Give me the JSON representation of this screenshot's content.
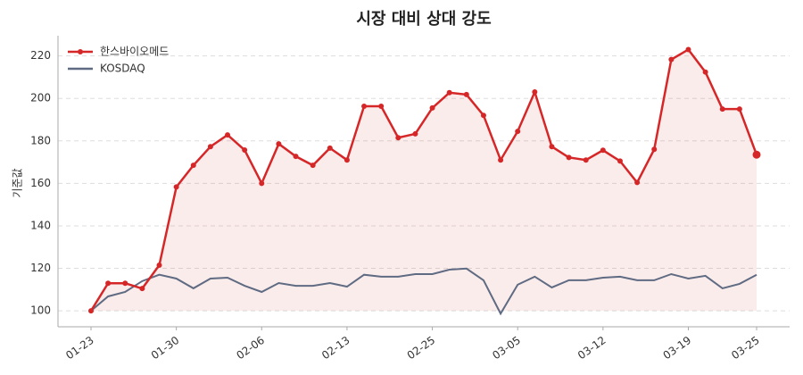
{
  "chart_data": {
    "type": "line",
    "title": "시장 대비 상대 강도",
    "ylabel": "기준값",
    "categories": [
      "01-23",
      null,
      null,
      null,
      null,
      "01-30",
      null,
      null,
      null,
      null,
      "02-06",
      null,
      null,
      null,
      null,
      "02-13",
      null,
      null,
      null,
      null,
      "02-25",
      null,
      null,
      null,
      null,
      "03-05",
      null,
      null,
      null,
      null,
      "03-12",
      null,
      null,
      null,
      null,
      "03-19",
      null,
      null,
      null,
      "03-25"
    ],
    "series": [
      {
        "name": "한스바이오메드",
        "color": "#d62728",
        "values": [
          100,
          113,
          113,
          110.5,
          121.5,
          158.3,
          168.5,
          177.3,
          182.8,
          175.7,
          160,
          178.6,
          172.7,
          168.5,
          176.6,
          171,
          196.3,
          196.3,
          181.5,
          183.3,
          195.5,
          202.7,
          201.8,
          192,
          171,
          184.5,
          203,
          177.3,
          172.2,
          171,
          175.6,
          170.5,
          160.4,
          176,
          218.3,
          223,
          212.4,
          195,
          195,
          173.5
        ]
      },
      {
        "name": "KOSDAQ",
        "color": "#5f6b82",
        "values": [
          100,
          106.8,
          108.9,
          114,
          117,
          115.2,
          110.6,
          115.2,
          115.6,
          111.8,
          108.9,
          113.1,
          111.8,
          111.8,
          113.1,
          111.4,
          117,
          116.1,
          116.1,
          117.3,
          117.3,
          119.4,
          119.9,
          114.4,
          98.7,
          112.3,
          116.1,
          111,
          114.4,
          114.4,
          115.6,
          116.1,
          114.4,
          114.4,
          117.3,
          115.2,
          116.5,
          110.6,
          112.7,
          117
        ]
      }
    ],
    "ylim": [
      92.5,
      229.5
    ],
    "yticks": [
      100,
      120,
      140,
      160,
      180,
      200,
      220
    ],
    "grid": true,
    "legend": "upper left"
  }
}
